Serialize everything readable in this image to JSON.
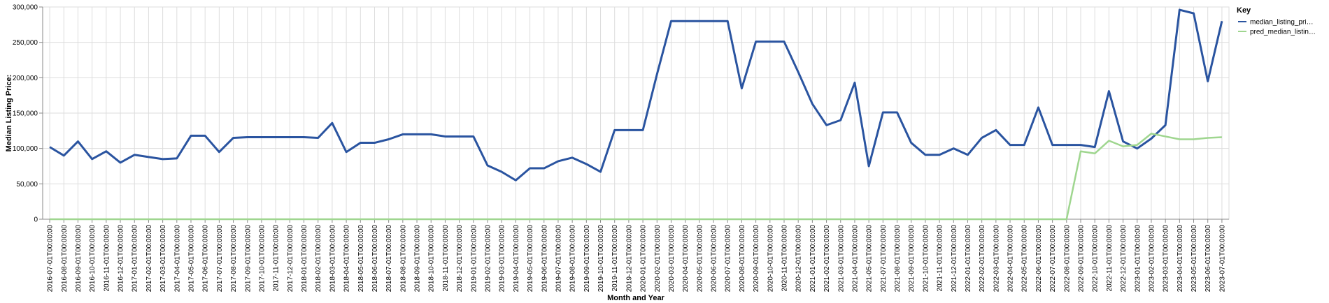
{
  "chart_data": {
    "type": "line",
    "xlabel": "Month and Year",
    "ylabel": "Median Listing Price:",
    "ylim": [
      0,
      300000
    ],
    "yticks": [
      0,
      50000,
      100000,
      150000,
      200000,
      250000,
      300000
    ],
    "ytick_labels": [
      "0",
      "50,000",
      "100,000",
      "150,000",
      "200,000",
      "250,000",
      "300,000"
    ],
    "grid": true,
    "legend": {
      "title": "Key",
      "position": "top-right"
    },
    "x": [
      "2016-07-01T00:00:00",
      "2016-08-01T00:00:00",
      "2016-09-01T00:00:00",
      "2016-10-01T00:00:00",
      "2016-11-01T00:00:00",
      "2016-12-01T00:00:00",
      "2017-01-01T00:00:00",
      "2017-02-01T00:00:00",
      "2017-03-01T00:00:00",
      "2017-04-01T00:00:00",
      "2017-05-01T00:00:00",
      "2017-06-01T00:00:00",
      "2017-07-01T00:00:00",
      "2017-08-01T00:00:00",
      "2017-09-01T00:00:00",
      "2017-10-01T00:00:00",
      "2017-11-01T00:00:00",
      "2017-12-01T00:00:00",
      "2018-01-01T00:00:00",
      "2018-02-01T00:00:00",
      "2018-03-01T00:00:00",
      "2018-04-01T00:00:00",
      "2018-05-01T00:00:00",
      "2018-06-01T00:00:00",
      "2018-07-01T00:00:00",
      "2018-08-01T00:00:00",
      "2018-09-01T00:00:00",
      "2018-10-01T00:00:00",
      "2018-11-01T00:00:00",
      "2018-12-01T00:00:00",
      "2019-01-01T00:00:00",
      "2019-02-01T00:00:00",
      "2019-03-01T00:00:00",
      "2019-04-01T00:00:00",
      "2019-05-01T00:00:00",
      "2019-06-01T00:00:00",
      "2019-07-01T00:00:00",
      "2019-08-01T00:00:00",
      "2019-09-01T00:00:00",
      "2019-10-01T00:00:00",
      "2019-11-01T00:00:00",
      "2019-12-01T00:00:00",
      "2020-01-01T00:00:00",
      "2020-02-01T00:00:00",
      "2020-03-01T00:00:00",
      "2020-04-01T00:00:00",
      "2020-05-01T00:00:00",
      "2020-06-01T00:00:00",
      "2020-07-01T00:00:00",
      "2020-08-01T00:00:00",
      "2020-09-01T00:00:00",
      "2020-10-01T00:00:00",
      "2020-11-01T00:00:00",
      "2020-12-01T00:00:00",
      "2021-01-01T00:00:00",
      "2021-02-01T00:00:00",
      "2021-03-01T00:00:00",
      "2021-04-01T00:00:00",
      "2021-05-01T00:00:00",
      "2021-07-01T00:00:00",
      "2021-08-01T00:00:00",
      "2021-09-01T00:00:00",
      "2021-10-01T00:00:00",
      "2021-11-01T00:00:00",
      "2021-12-01T00:00:00",
      "2022-01-01T00:00:00",
      "2022-02-01T00:00:00",
      "2022-03-01T00:00:00",
      "2022-04-01T00:00:00",
      "2022-05-01T00:00:00",
      "2022-06-01T00:00:00",
      "2022-07-01T00:00:00",
      "2022-08-01T00:00:00",
      "2022-09-01T00:00:00",
      "2022-10-01T00:00:00",
      "2022-11-01T00:00:00",
      "2022-12-01T00:00:00",
      "2023-01-01T00:00:00",
      "2023-02-01T00:00:00",
      "2023-03-01T00:00:00",
      "2023-04-01T00:00:00",
      "2023-05-01T00:00:00",
      "2023-06-01T00:00:00",
      "2023-07-01T00:00:00"
    ],
    "series": [
      {
        "name": "median_listing_pri…",
        "color": "#2a54a0",
        "values": [
          102000,
          90000,
          110000,
          85000,
          96000,
          80000,
          91000,
          88000,
          85000,
          86000,
          118000,
          118000,
          95000,
          115000,
          116000,
          116000,
          116000,
          116000,
          116000,
          115000,
          136000,
          95000,
          108000,
          108000,
          113000,
          120000,
          120000,
          120000,
          117000,
          117000,
          117000,
          76000,
          67000,
          55000,
          72000,
          72000,
          82000,
          87000,
          78000,
          67000,
          126000,
          126000,
          126000,
          205000,
          280000,
          280000,
          280000,
          280000,
          280000,
          185000,
          251000,
          251000,
          251000,
          208000,
          163000,
          133000,
          140000,
          193000,
          75000,
          151000,
          151000,
          108000,
          91000,
          91000,
          100000,
          91000,
          115000,
          126000,
          105000,
          105000,
          158000,
          105000,
          105000,
          105000,
          102000,
          181000,
          110000,
          100000,
          114000,
          133000,
          296000,
          291000,
          195000,
          280000
        ]
      },
      {
        "name": "pred_median_listin…",
        "color": "#9fd68f",
        "values": [
          0,
          0,
          0,
          0,
          0,
          0,
          0,
          0,
          0,
          0,
          0,
          0,
          0,
          0,
          0,
          0,
          0,
          0,
          0,
          0,
          0,
          0,
          0,
          0,
          0,
          0,
          0,
          0,
          0,
          0,
          0,
          0,
          0,
          0,
          0,
          0,
          0,
          0,
          0,
          0,
          0,
          0,
          0,
          0,
          0,
          0,
          0,
          0,
          0,
          0,
          0,
          0,
          0,
          0,
          0,
          0,
          0,
          0,
          0,
          0,
          0,
          0,
          0,
          0,
          0,
          0,
          0,
          0,
          0,
          0,
          0,
          0,
          0,
          96000,
          93000,
          111000,
          103000,
          105000,
          121000,
          117000,
          113000,
          113000,
          115000,
          116000
        ]
      }
    ]
  }
}
